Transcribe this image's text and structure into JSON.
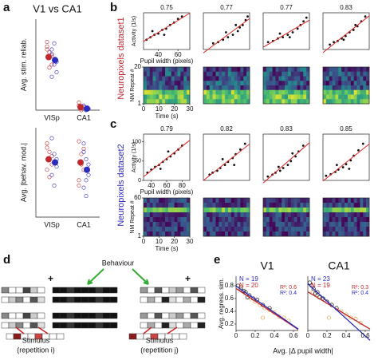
{
  "a": {
    "label": "a",
    "title": "V1 vs CA1",
    "categories": [
      "VISp",
      "CA1"
    ],
    "plots": [
      {
        "ylabel": "Avg. stim. reliab.",
        "ylim": [
          0,
          0.6
        ],
        "series": [
          {
            "color": "#c0282d",
            "means": [
              0.35,
              0.02
            ],
            "points": [
              [
                0.42,
                0.38,
                0.3,
                0.45,
                0.28,
                0.36,
                0.4
              ],
              [
                0.03,
                0.01,
                0.02,
                0.05,
                0.0,
                0.02
              ]
            ]
          },
          {
            "color": "#2b2bbf",
            "means": [
              0.33,
              0.01
            ],
            "points": [
              [
                0.4,
                0.3,
                0.25,
                0.37,
                0.44,
                0.32,
                0.22
              ],
              [
                0.02,
                0.0,
                0.01,
                0.03
              ]
            ]
          }
        ]
      },
      {
        "ylabel": "Avg. |behav. mod.|",
        "ylim": [
          0,
          0.85
        ],
        "series": [
          {
            "color": "#c0282d",
            "means": [
              0.55,
              0.52
            ],
            "points": [
              [
                0.7,
                0.62,
                0.5,
                0.45,
                0.38,
                0.58,
                0.66
              ],
              [
                0.72,
                0.6,
                0.45,
                0.35,
                0.5,
                0.65,
                0.3
              ]
            ]
          },
          {
            "color": "#2b2bbf",
            "means": [
              0.52,
              0.45
            ],
            "points": [
              [
                0.75,
                0.6,
                0.48,
                0.4,
                0.3,
                0.55
              ],
              [
                0.7,
                0.55,
                0.4,
                0.28,
                0.2,
                0.5,
                0.62,
                0.35
              ]
            ]
          }
        ]
      }
    ]
  },
  "b": {
    "label": "b",
    "side_title": "Neuropixels dataset1",
    "side_color": "#c0282d",
    "xlabel": "Pupil width (pixels)",
    "ylabel": "Activity (1/s)",
    "xlim": [
      25,
      72
    ],
    "ylim": [
      0,
      30
    ],
    "xticks": [
      40,
      60
    ],
    "plots": [
      {
        "r": 0.75,
        "x": [
          28,
          32,
          36,
          40,
          44,
          48,
          52,
          56,
          60,
          64,
          34,
          46
        ],
        "y": [
          8,
          10,
          12,
          13,
          16,
          17,
          20,
          22,
          25,
          27,
          15,
          12
        ]
      },
      {
        "r": 0.77,
        "x": [
          35,
          40,
          45,
          50,
          55,
          60,
          62,
          65,
          68,
          70,
          48,
          58
        ],
        "y": [
          5,
          6,
          8,
          10,
          12,
          15,
          18,
          20,
          24,
          27,
          14,
          20
        ]
      },
      {
        "r": 0.77,
        "x": [
          30,
          35,
          40,
          45,
          50,
          55,
          60,
          63,
          66,
          69,
          42,
          52
        ],
        "y": [
          6,
          7,
          9,
          10,
          12,
          14,
          17,
          20,
          23,
          26,
          13,
          10
        ]
      },
      {
        "r": 0.83,
        "x": [
          32,
          36,
          40,
          44,
          48,
          52,
          56,
          60,
          64,
          68,
          46,
          58
        ],
        "y": [
          4,
          6,
          7,
          9,
          11,
          14,
          16,
          19,
          23,
          27,
          8,
          20
        ]
      }
    ],
    "heat_ylabel": "NM Repeat #",
    "heat_yticks": [
      1,
      20
    ],
    "heat_ylim": [
      1,
      20
    ],
    "time_label": "Time (s)",
    "time_xlim": [
      0,
      30
    ],
    "time_xticks": [
      0,
      10,
      20,
      30
    ]
  },
  "c": {
    "label": "c",
    "side_title": "Neuropixels dataset2",
    "side_color": "#2b2bbf",
    "xlabel": "Pupil width (pixels)",
    "ylabel": "Activity (1/s)",
    "xlim": [
      30,
      90
    ],
    "ylim": [
      0,
      120
    ],
    "xticks": [
      40,
      60,
      80
    ],
    "yticks": [
      0,
      50,
      100
    ],
    "plots": [
      {
        "r": 0.79,
        "x": [
          35,
          40,
          45,
          50,
          55,
          60,
          65,
          70,
          75,
          80,
          52,
          62
        ],
        "y": [
          20,
          28,
          35,
          40,
          48,
          55,
          62,
          70,
          80,
          90,
          30,
          75
        ]
      },
      {
        "r": 0.82,
        "x": [
          38,
          42,
          48,
          52,
          58,
          62,
          68,
          72,
          78,
          84,
          55,
          70
        ],
        "y": [
          15,
          20,
          25,
          32,
          40,
          48,
          58,
          68,
          80,
          95,
          55,
          40
        ]
      },
      {
        "r": 0.83,
        "x": [
          36,
          42,
          46,
          52,
          56,
          62,
          66,
          72,
          76,
          82,
          50,
          68
        ],
        "y": [
          10,
          15,
          20,
          25,
          32,
          40,
          50,
          62,
          75,
          90,
          35,
          70
        ]
      },
      {
        "r": 0.85,
        "x": [
          34,
          40,
          46,
          50,
          56,
          60,
          66,
          70,
          76,
          82,
          48,
          64
        ],
        "y": [
          12,
          16,
          22,
          28,
          34,
          42,
          52,
          64,
          78,
          95,
          40,
          30
        ]
      }
    ],
    "heat_ylabel": "NM Repeat #",
    "heat_yticks": [
      1,
      60
    ],
    "heat_ylim": [
      1,
      60
    ],
    "time_label": "Time (s)",
    "time_xlim": [
      0,
      30
    ],
    "time_xticks": [
      0,
      10,
      20,
      30
    ]
  },
  "d": {
    "label": "d",
    "behaviour": "Behaviour",
    "stimulus_i": "Stimulus",
    "repetition_i": "(repetition i)",
    "stimulus_j": "Stimulus",
    "repetition_j": "(repetition j)"
  },
  "e": {
    "label": "e",
    "ylabel": "Avg. regress. sim.",
    "xlabel": "Avg. |Δ pupil width|",
    "xlim": [
      0,
      0.65
    ],
    "ylim": [
      0.1,
      0.95
    ],
    "xticks": [
      0,
      0.2,
      0.4,
      0.6
    ],
    "yticks": [
      0.2,
      0.4,
      0.6,
      0.8
    ],
    "plots": [
      {
        "title": "V1",
        "n_blue": "N = 19",
        "n_red": "N = 20",
        "r2_red": "R²: 0.6",
        "r2_blue": "R²: 0.4",
        "black": {
          "x": [
            0.02,
            0.05,
            0.08,
            0.1,
            0.14,
            0.18,
            0.22,
            0.28,
            0.35,
            0.12
          ],
          "y": [
            0.8,
            0.75,
            0.72,
            0.7,
            0.65,
            0.6,
            0.58,
            0.5,
            0.45,
            0.62
          ]
        },
        "orange": {
          "x": [
            0.05,
            0.1,
            0.15,
            0.2,
            0.25,
            0.3,
            0.35,
            0.4,
            0.45,
            0.5,
            0.55,
            0.28
          ],
          "y": [
            0.78,
            0.7,
            0.6,
            0.55,
            0.5,
            0.45,
            0.42,
            0.38,
            0.32,
            0.3,
            0.25,
            0.3
          ]
        }
      },
      {
        "title": "CA1",
        "n_blue": "N = 23",
        "n_red": "N = 19",
        "r2_red": "R²: 0.3",
        "r2_blue": "R²: 0.4",
        "black": {
          "x": [
            0.02,
            0.04,
            0.06,
            0.1,
            0.12,
            0.16,
            0.2,
            0.25,
            0.3,
            0.08
          ],
          "y": [
            0.85,
            0.8,
            0.75,
            0.7,
            0.62,
            0.6,
            0.55,
            0.5,
            0.45,
            0.68
          ]
        },
        "orange": {
          "x": [
            0.05,
            0.1,
            0.15,
            0.2,
            0.25,
            0.3,
            0.35,
            0.4,
            0.45,
            0.5,
            0.55,
            0.22
          ],
          "y": [
            0.7,
            0.65,
            0.6,
            0.55,
            0.5,
            0.45,
            0.4,
            0.35,
            0.3,
            0.28,
            0.22,
            0.3
          ]
        }
      }
    ]
  }
}
